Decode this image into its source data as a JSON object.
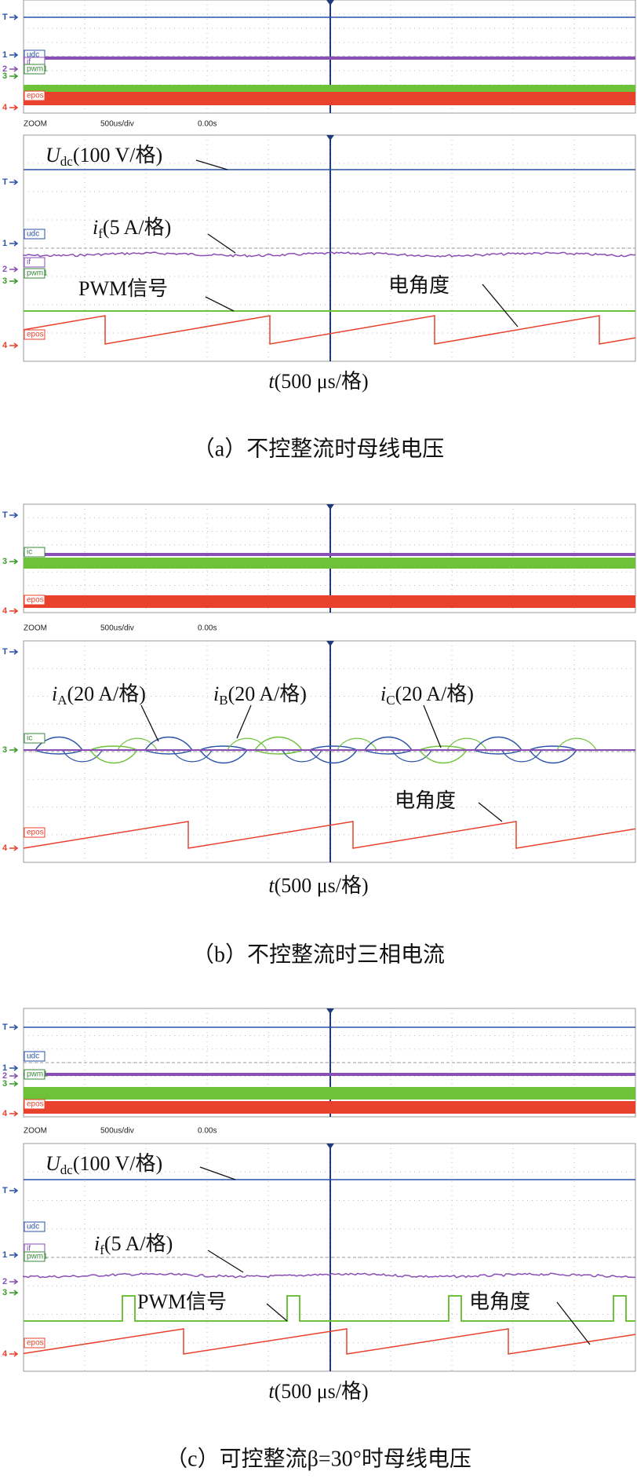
{
  "panels": [
    {
      "overview": {
        "channel_tags": [
          "udc",
          "if",
          "pwm1",
          "epos"
        ],
        "markers": [
          "T",
          "1",
          "2",
          "3",
          "4"
        ]
      },
      "zoom_bar": [
        "ZOOM",
        "500us/div",
        "0.00s"
      ],
      "zoom": {
        "channel_tags": [
          "udc",
          "if",
          "pwm1",
          "epos"
        ],
        "markers": [
          "T",
          "1",
          "2",
          "3",
          "4"
        ],
        "annotations": [
          {
            "symbol": "U",
            "sub": "dc",
            "text": "(100 V/格)"
          },
          {
            "symbol": "i",
            "sub": "f",
            "text": "(5 A/格)"
          },
          {
            "text": "PWM信号"
          },
          {
            "text": "电角度"
          }
        ]
      },
      "x_label": {
        "symbol": "t",
        "text": "(500 μs/格)"
      },
      "caption": "（a）不控整流时母线电压"
    },
    {
      "overview": {
        "channel_tags": [
          "ic",
          "epos"
        ],
        "markers": [
          "T",
          "3",
          "4"
        ]
      },
      "zoom_bar": [
        "ZOOM",
        "500us/div",
        "0.00s"
      ],
      "zoom": {
        "channel_tags": [
          "ic",
          "epos"
        ],
        "markers": [
          "T",
          "3",
          "4"
        ],
        "annotations": [
          {
            "symbol": "i",
            "sub": "A",
            "text": "(20 A/格)"
          },
          {
            "symbol": "i",
            "sub": "B",
            "text": "(20 A/格)"
          },
          {
            "symbol": "i",
            "sub": "C",
            "text": "(20 A/格)"
          },
          {
            "text": "电角度"
          }
        ]
      },
      "x_label": {
        "symbol": "t",
        "text": "(500 μs/格)"
      },
      "caption": "（b）不控整流时三相电流"
    },
    {
      "overview": {
        "channel_tags": [
          "udc",
          "pwm1",
          "epos"
        ],
        "markers": [
          "T",
          "1",
          "2",
          "3",
          "4"
        ]
      },
      "zoom_bar": [
        "ZOOM",
        "500us/div",
        "0.00s"
      ],
      "zoom": {
        "channel_tags": [
          "udc",
          "if",
          "pwm1",
          "epos"
        ],
        "markers": [
          "T",
          "1",
          "2",
          "3",
          "4"
        ],
        "annotations": [
          {
            "symbol": "U",
            "sub": "dc",
            "text": "(100 V/格)"
          },
          {
            "symbol": "i",
            "sub": "f",
            "text": "(5 A/格)"
          },
          {
            "text": "PWM信号"
          },
          {
            "text": "电角度"
          }
        ]
      },
      "x_label": {
        "symbol": "t",
        "text": "(500 μs/格)"
      },
      "caption": "（c）可控整流β=30°时母线电压"
    }
  ]
}
